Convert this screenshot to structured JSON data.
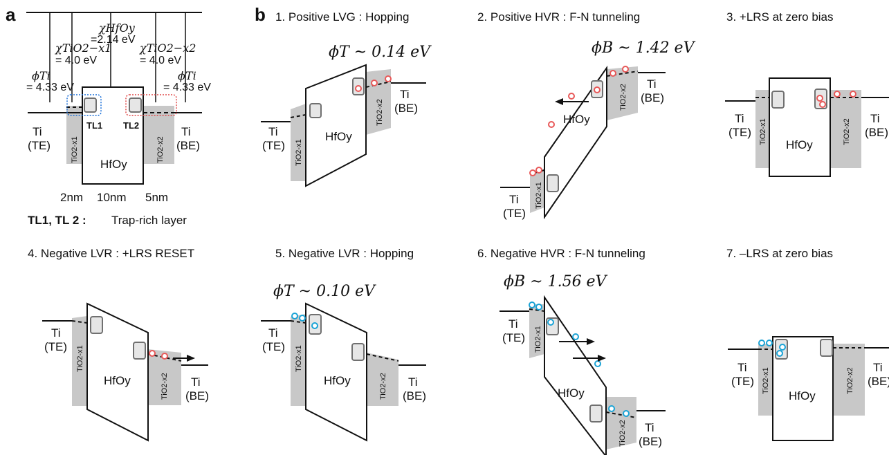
{
  "colors": {
    "blue": "#1a6fd8",
    "red": "#e04848",
    "gray_fill": "#c8c8c8",
    "trap_box": "#e6e6e6",
    "electron_red": "#e85858",
    "electron_blue": "#1aa3d6"
  },
  "panel_a": {
    "letter": "a",
    "chi_hfo": "χHfOy",
    "chi_hfo_val": "=2.14 eV",
    "chi_tio1": "χTiO2−x1",
    "chi_tio1_val": "= 4.0 eV",
    "chi_tio2": "χTiO2−x2",
    "chi_tio2_val": "= 4.0 eV",
    "phi_ti_left": "ϕTi",
    "phi_ti_left_val": "= 4.33 eV",
    "phi_ti_right": "ϕTi",
    "phi_ti_right_val": "= 4.33 eV",
    "tl1": "TL1",
    "tl2": "TL2",
    "ti": "Ti",
    "te": "(TE)",
    "be": "(BE)",
    "tio1": "TiO2-x1",
    "tio2": "TiO2-x2",
    "hfo": "HfOy",
    "thick_1": "2nm",
    "thick_2": "10nm",
    "thick_3": "5nm",
    "legend_tl": "TL1, TL 2 :",
    "legend_text": "Trap-rich layer"
  },
  "panel_b": {
    "letter": "b",
    "titles": [
      "1. Positive LVG : Hopping",
      "2. Positive HVR : F-N tunneling",
      "3. +LRS at zero bias",
      "4. Negative LVR : +LRS RESET",
      "5. Negative LVR : Hopping",
      "6. Negative HVR : F-N tunneling",
      "7. –LRS at zero bias"
    ],
    "phi_1": "ϕT ~ 0.14 eV",
    "phi_2": "ϕB ~ 1.42 eV",
    "phi_5": "ϕT ~ 0.10 eV",
    "phi_6": "ϕB ~ 1.56 eV",
    "ti": "Ti",
    "te": "(TE)",
    "be": "(BE)",
    "tio1": "TiO2-x1",
    "tio2": "TiO2-x2",
    "hfo": "HfOy"
  }
}
